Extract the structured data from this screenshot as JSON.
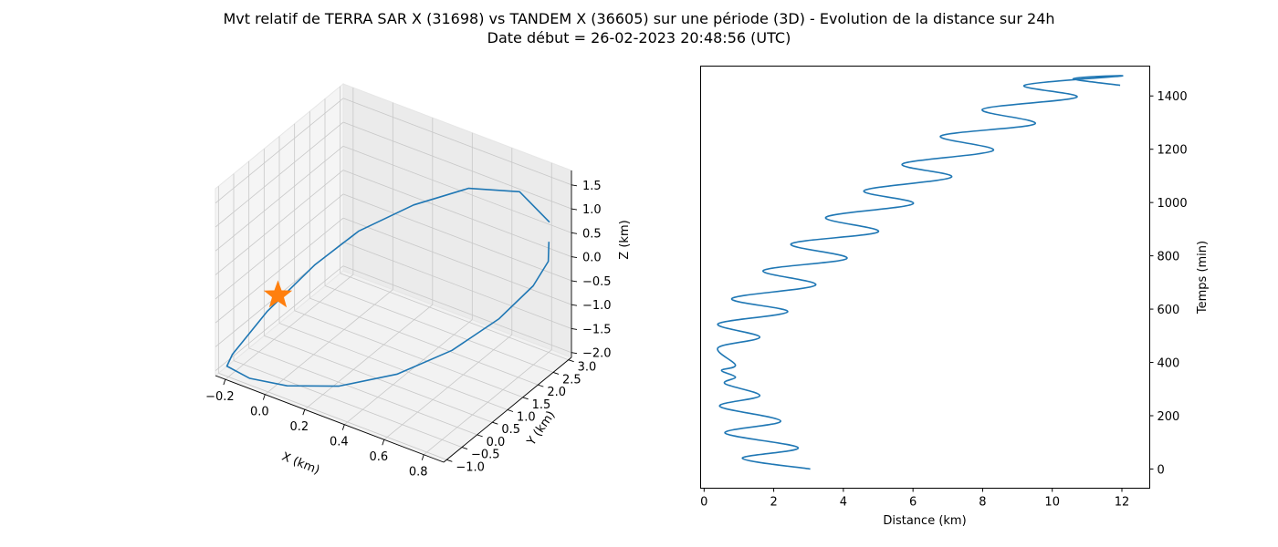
{
  "figure": {
    "title_line1": "Mvt relatif de TERRA SAR X (31698) vs TANDEM X (36605) sur une période (3D) - Evolution de la distance sur 24h",
    "title_line2": "Date début = 26-02-2023 20:48:56 (UTC)"
  },
  "chart_data": [
    {
      "type": "line3d",
      "xlabel": "X (km)",
      "ylabel": "Y (km)",
      "zlabel": "Z (km)",
      "x_ticks": [
        "−0.2",
        "0.0",
        "0.2",
        "0.4",
        "0.6",
        "0.8"
      ],
      "y_ticks": [
        "−1.0",
        "−0.5",
        "0.0",
        "0.5",
        "1.0",
        "1.5",
        "2.0",
        "2.5",
        "3.0"
      ],
      "z_ticks": [
        "−2.0",
        "−1.5",
        "−1.0",
        "−0.5",
        "0.0",
        "0.5",
        "1.0",
        "1.5"
      ],
      "xlim": [
        -0.25,
        0.9
      ],
      "ylim": [
        -1.1,
        3.1
      ],
      "zlim": [
        -2.1,
        1.8
      ],
      "grid": true,
      "line_color": "#1f77b4",
      "marker_color": "#ff7f0e",
      "marker": "star",
      "path": [
        {
          "x": 0.82,
          "y": 2.9,
          "z": 0.7
        },
        {
          "x": 0.7,
          "y": 2.7,
          "z": 1.25
        },
        {
          "x": 0.52,
          "y": 2.2,
          "z": 1.3
        },
        {
          "x": 0.35,
          "y": 1.5,
          "z": 1.05
        },
        {
          "x": 0.18,
          "y": 0.8,
          "z": 0.6
        },
        {
          "x": 0.05,
          "y": 0.2,
          "z": 0.0
        },
        {
          "x": -0.08,
          "y": -0.5,
          "z": -0.8
        },
        {
          "x": -0.18,
          "y": -1.0,
          "z": -1.6
        },
        {
          "x": -0.2,
          "y": -1.05,
          "z": -1.85
        },
        {
          "x": -0.1,
          "y": -0.95,
          "z": -2.0
        },
        {
          "x": 0.05,
          "y": -0.7,
          "z": -2.05
        },
        {
          "x": 0.25,
          "y": -0.3,
          "z": -1.95
        },
        {
          "x": 0.45,
          "y": 0.3,
          "z": -1.7
        },
        {
          "x": 0.62,
          "y": 1.0,
          "z": -1.3
        },
        {
          "x": 0.75,
          "y": 1.7,
          "z": -0.8
        },
        {
          "x": 0.83,
          "y": 2.3,
          "z": -0.3
        },
        {
          "x": 0.86,
          "y": 2.6,
          "z": 0.1
        },
        {
          "x": 0.86,
          "y": 2.62,
          "z": 0.5
        }
      ],
      "marker_point": {
        "x": -0.05,
        "y": -0.35,
        "z": -0.5
      }
    },
    {
      "type": "line",
      "xlabel": "Distance (km)",
      "ylabel": "Temps (min)",
      "xlim": [
        -0.1,
        12.8
      ],
      "ylim": [
        -72,
        1512
      ],
      "x_ticks": [
        0,
        2,
        4,
        6,
        8,
        10,
        12
      ],
      "y_ticks": [
        0,
        200,
        400,
        600,
        800,
        1000,
        1200,
        1400
      ],
      "line_color": "#1f77b4",
      "series": [
        {
          "x": [
            3.05,
            1.1,
            2.7,
            0.6,
            2.2,
            0.45,
            1.6,
            0.6,
            0.9,
            0.5,
            0.9,
            0.4,
            1.6,
            0.4,
            2.4,
            0.8,
            3.2,
            1.7,
            4.1,
            2.5,
            5.0,
            3.5,
            6.0,
            4.6,
            7.1,
            5.7,
            8.3,
            6.8,
            9.5,
            8.0,
            10.7,
            9.2,
            12.0,
            10.6,
            11.95
          ],
          "y": [
            0,
            40,
            80,
            135,
            180,
            235,
            275,
            320,
            345,
            370,
            390,
            455,
            495,
            545,
            590,
            640,
            690,
            745,
            790,
            845,
            890,
            945,
            995,
            1045,
            1095,
            1145,
            1195,
            1250,
            1295,
            1350,
            1395,
            1440,
            1475,
            1465,
            1440
          ]
        }
      ]
    }
  ]
}
